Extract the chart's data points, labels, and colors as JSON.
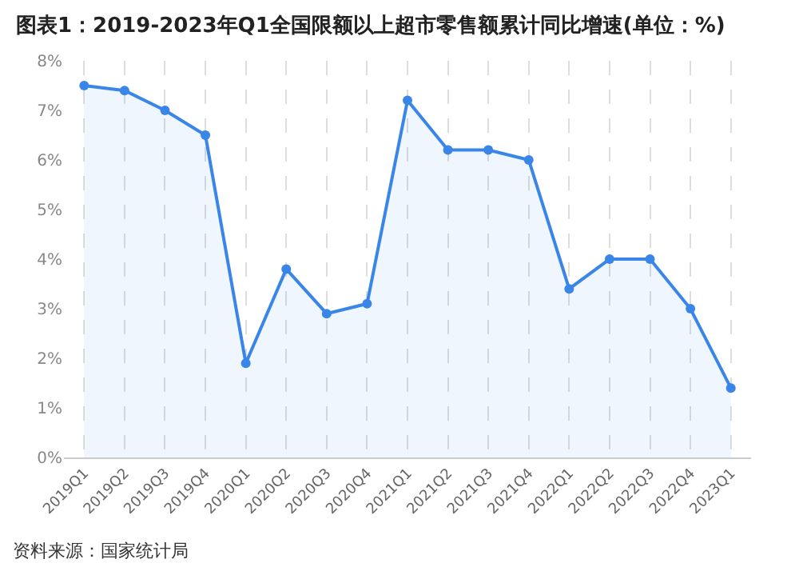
{
  "chart_data": {
    "type": "area",
    "title": "图表1：2019-2023年Q1全国限额以上超市零售额累计同比增速(单位：%)",
    "categories": [
      "2019Q1",
      "2019Q2",
      "2019Q3",
      "2019Q4",
      "2020Q1",
      "2020Q2",
      "2020Q3",
      "2020Q4",
      "2021Q1",
      "2021Q2",
      "2021Q3",
      "2021Q4",
      "2022Q1",
      "2022Q2",
      "2022Q3",
      "2022Q4",
      "2023Q1"
    ],
    "series": [
      {
        "color": "#3a86e8",
        "values": [
          7.5,
          7.4,
          7.0,
          6.5,
          1.9,
          3.8,
          2.9,
          3.1,
          7.2,
          6.2,
          6.2,
          6.0,
          3.4,
          4.0,
          4.0,
          3.0,
          1.4
        ]
      }
    ],
    "ylim": [
      0,
      8
    ],
    "yticks": [
      {
        "value": 0,
        "label": "0%"
      },
      {
        "value": 1,
        "label": "1%"
      },
      {
        "value": 2,
        "label": "2%"
      },
      {
        "value": 3,
        "label": "3%"
      },
      {
        "value": 4,
        "label": "4%"
      },
      {
        "value": 5,
        "label": "5%"
      },
      {
        "value": 6,
        "label": "6%"
      },
      {
        "value": 7,
        "label": "7%"
      },
      {
        "value": 8,
        "label": "8%"
      }
    ],
    "grid": "x",
    "marker": "circle",
    "line_style": "solid",
    "annotations": [
      "资料来源：国家统计局"
    ]
  }
}
